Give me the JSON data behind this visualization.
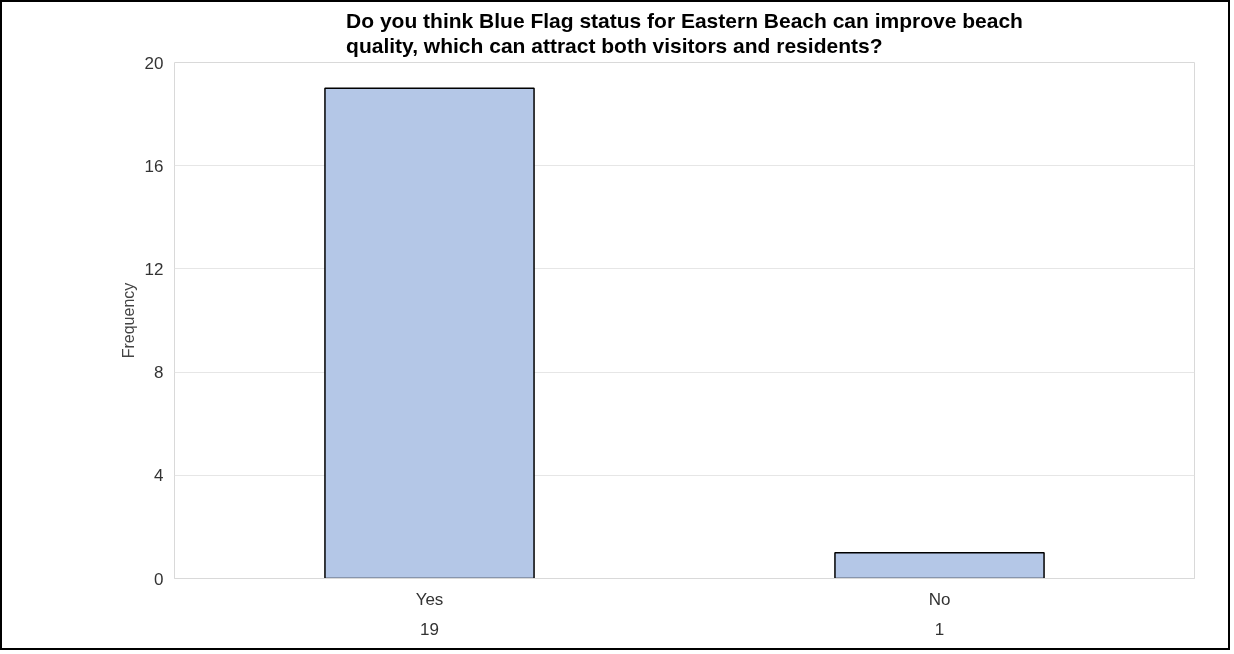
{
  "chart_data": {
    "type": "bar",
    "title": "Do you think Blue Flag status for Eastern Beach can improve beach quality, which can attract both visitors and residents?",
    "ylabel": "Frequency",
    "categories": [
      "Yes",
      "No"
    ],
    "values": [
      19,
      1
    ],
    "color": "#b4c7e7",
    "ylim": [
      0,
      20
    ],
    "yticks": [
      0,
      4,
      8,
      12,
      16,
      20
    ],
    "grid": "y",
    "data_labels": true
  }
}
